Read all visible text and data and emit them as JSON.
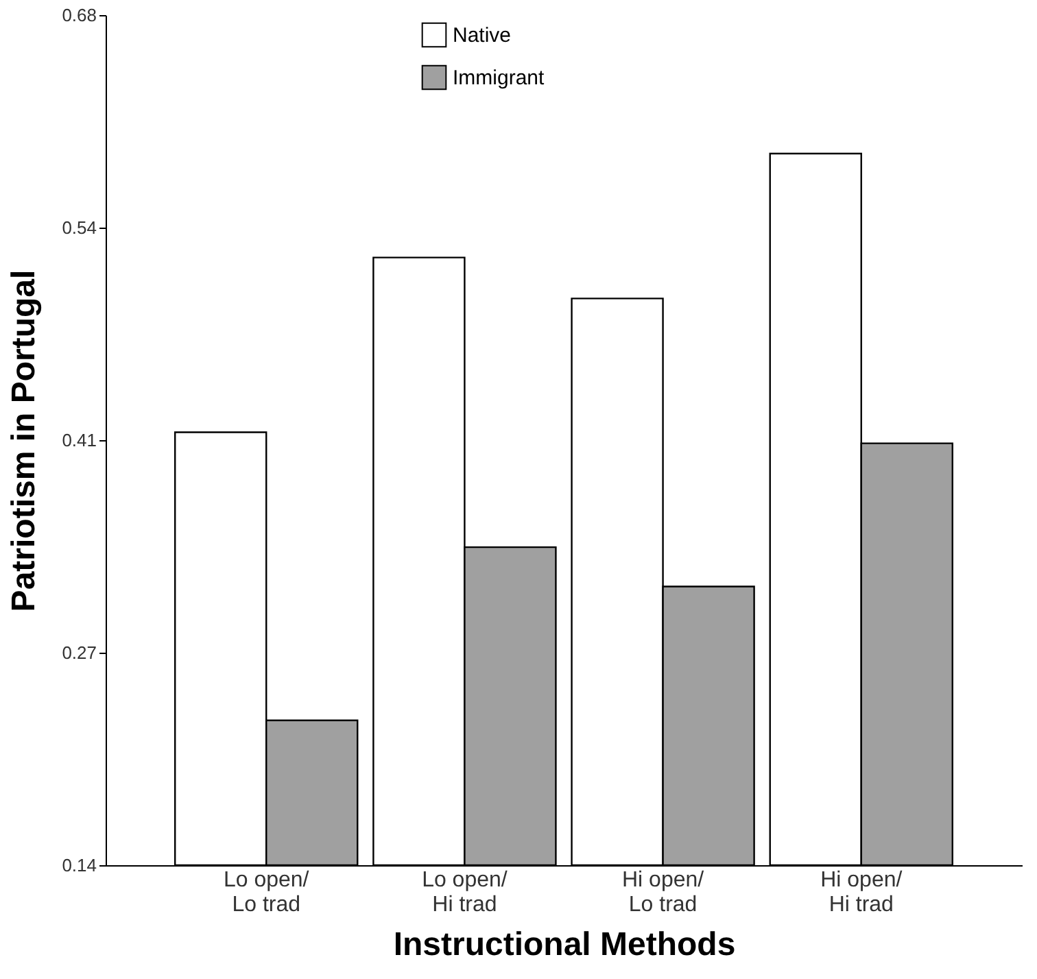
{
  "chart_data": {
    "type": "bar",
    "xlabel": "Instructional Methods",
    "ylabel": "Patriotism in Portugal",
    "categories": [
      "Lo open/\nLo trad",
      "Lo open/\nHi trad",
      "Hi open/\nLo trad",
      "Hi open/\nHi trad"
    ],
    "series": [
      {
        "name": "Native",
        "color": "#ffffff",
        "values": [
          0.415,
          0.526,
          0.5,
          0.592
        ]
      },
      {
        "name": "Immigrant",
        "color": "#a0a0a0",
        "values": [
          0.232,
          0.342,
          0.317,
          0.408
        ]
      }
    ],
    "ylim": [
      0.14,
      0.68
    ],
    "yticks": [
      0.14,
      {
        "value": 0.275,
        "label": "0.27"
      },
      0.41,
      {
        "value": 0.545,
        "label": "0.54"
      },
      0.68
    ],
    "grid": false,
    "legend": "top"
  }
}
